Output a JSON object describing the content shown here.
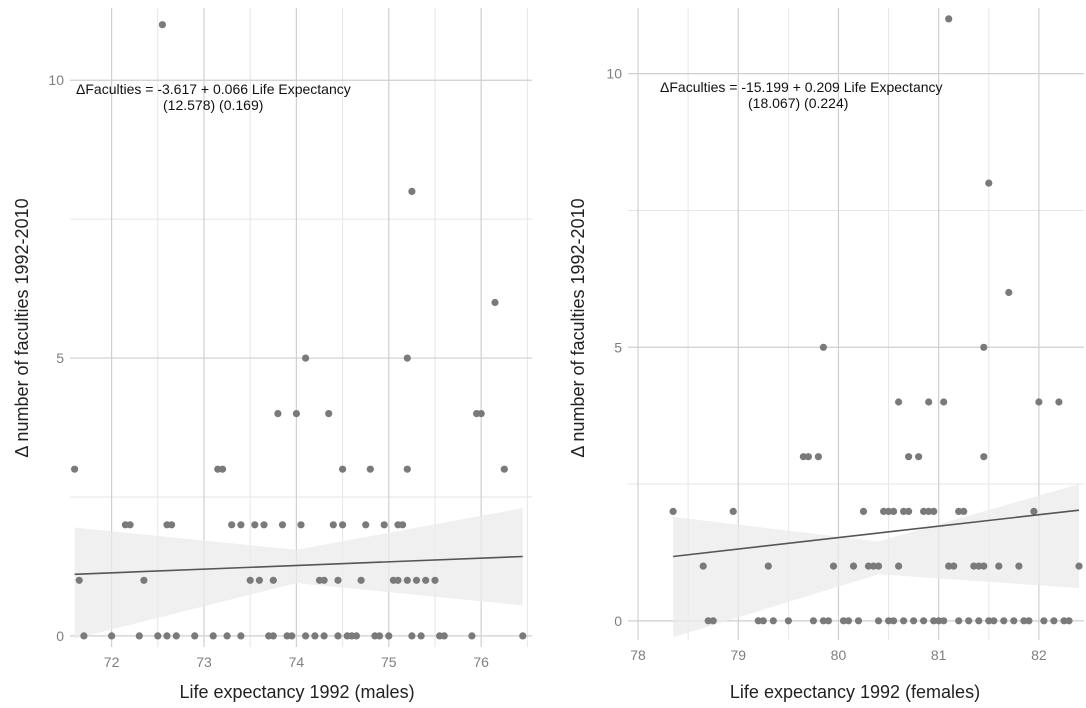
{
  "chart_data": [
    {
      "type": "scatter",
      "xlabel": "Life expectancy 1992 (males)",
      "ylabel": "Δ number of faculties 1992-2010",
      "xlim": [
        71.55,
        76.55
      ],
      "ylim": [
        -0.2,
        11.3
      ],
      "x_ticks": [
        72,
        73,
        74,
        75,
        76
      ],
      "y_ticks": [
        0,
        5,
        10
      ],
      "grid": true,
      "annotation": {
        "line1": "ΔFaculties = -3.617 +   0.066 Life Expectancy",
        "line2": "(12.578)   (0.169)",
        "x": 71.55,
        "y": 9.95
      },
      "fit": {
        "intercept": -3.617,
        "slope": 0.066,
        "x_from": 71.6,
        "x_to": 76.45
      },
      "ci_band": {
        "x": [
          71.6,
          74.0,
          76.45
        ],
        "lower": [
          -0.05,
          0.95,
          0.55
        ],
        "upper": [
          1.95,
          1.55,
          2.3
        ]
      },
      "points": [
        [
          71.6,
          3
        ],
        [
          71.65,
          1
        ],
        [
          71.7,
          0
        ],
        [
          72.0,
          0
        ],
        [
          72.15,
          2
        ],
        [
          72.2,
          2
        ],
        [
          72.3,
          0
        ],
        [
          72.35,
          1
        ],
        [
          72.5,
          0
        ],
        [
          72.55,
          11
        ],
        [
          72.6,
          0
        ],
        [
          72.6,
          2
        ],
        [
          72.65,
          2
        ],
        [
          72.7,
          0
        ],
        [
          72.9,
          0
        ],
        [
          73.1,
          0
        ],
        [
          73.15,
          3
        ],
        [
          73.2,
          3
        ],
        [
          73.25,
          0
        ],
        [
          73.3,
          2
        ],
        [
          73.4,
          2
        ],
        [
          73.4,
          0
        ],
        [
          73.5,
          1
        ],
        [
          73.55,
          2
        ],
        [
          73.6,
          1
        ],
        [
          73.65,
          2
        ],
        [
          73.7,
          0
        ],
        [
          73.75,
          1
        ],
        [
          73.75,
          0
        ],
        [
          73.8,
          4
        ],
        [
          73.85,
          2
        ],
        [
          73.9,
          0
        ],
        [
          73.95,
          0
        ],
        [
          74.0,
          4
        ],
        [
          74.05,
          2
        ],
        [
          74.1,
          0
        ],
        [
          74.1,
          5
        ],
        [
          74.2,
          0
        ],
        [
          74.25,
          1
        ],
        [
          74.3,
          0
        ],
        [
          74.3,
          1
        ],
        [
          74.35,
          4
        ],
        [
          74.4,
          2
        ],
        [
          74.45,
          0
        ],
        [
          74.45,
          1
        ],
        [
          74.5,
          3
        ],
        [
          74.5,
          2
        ],
        [
          74.55,
          0
        ],
        [
          74.6,
          0
        ],
        [
          74.65,
          0
        ],
        [
          74.7,
          1
        ],
        [
          74.75,
          2
        ],
        [
          74.8,
          3
        ],
        [
          74.85,
          0
        ],
        [
          74.9,
          0
        ],
        [
          74.95,
          2
        ],
        [
          75.0,
          0
        ],
        [
          75.05,
          1
        ],
        [
          75.1,
          1
        ],
        [
          75.1,
          2
        ],
        [
          75.15,
          2
        ],
        [
          75.2,
          1
        ],
        [
          75.2,
          3
        ],
        [
          75.2,
          5
        ],
        [
          75.25,
          8
        ],
        [
          75.25,
          0
        ],
        [
          75.3,
          1
        ],
        [
          75.35,
          0
        ],
        [
          75.4,
          1
        ],
        [
          75.5,
          1
        ],
        [
          75.55,
          0
        ],
        [
          75.6,
          0
        ],
        [
          75.9,
          0
        ],
        [
          75.95,
          4
        ],
        [
          76.0,
          4
        ],
        [
          76.15,
          6
        ],
        [
          76.25,
          3
        ],
        [
          76.45,
          0
        ]
      ]
    },
    {
      "type": "scatter",
      "xlabel": "Life expectancy 1992 (females)",
      "ylabel": "Δ number of faculties 1992-2010",
      "xlim": [
        77.9,
        82.45
      ],
      "ylim": [
        -0.35,
        11.2
      ],
      "x_ticks": [
        78,
        79,
        80,
        81,
        82
      ],
      "y_ticks": [
        0,
        5,
        10
      ],
      "grid": true,
      "annotation": {
        "line1": "ΔFaculties = -15.199 +   0.209 Life Expectancy",
        "line2": "(18.067)     (0.224)",
        "x": 78.6,
        "y": 9.95
      },
      "fit": {
        "intercept": -15.199,
        "slope": 0.209,
        "x_from": 78.35,
        "x_to": 82.4
      },
      "ci_band": {
        "x": [
          78.35,
          80.4,
          82.4
        ],
        "lower": [
          -0.3,
          0.85,
          0.6
        ],
        "upper": [
          1.9,
          1.45,
          2.5
        ]
      },
      "points": [
        [
          78.35,
          2
        ],
        [
          78.65,
          1
        ],
        [
          78.7,
          0
        ],
        [
          78.75,
          0
        ],
        [
          78.95,
          2
        ],
        [
          79.2,
          0
        ],
        [
          79.25,
          0
        ],
        [
          79.3,
          1
        ],
        [
          79.35,
          0
        ],
        [
          79.5,
          0
        ],
        [
          79.65,
          3
        ],
        [
          79.7,
          3
        ],
        [
          79.75,
          0
        ],
        [
          79.8,
          3
        ],
        [
          79.85,
          0
        ],
        [
          79.85,
          5
        ],
        [
          79.9,
          0
        ],
        [
          79.95,
          1
        ],
        [
          80.05,
          0
        ],
        [
          80.1,
          0
        ],
        [
          80.15,
          1
        ],
        [
          80.2,
          0
        ],
        [
          80.25,
          2
        ],
        [
          80.3,
          1
        ],
        [
          80.35,
          1
        ],
        [
          80.4,
          0
        ],
        [
          80.4,
          1
        ],
        [
          80.45,
          2
        ],
        [
          80.5,
          0
        ],
        [
          80.5,
          2
        ],
        [
          80.55,
          2
        ],
        [
          80.55,
          0
        ],
        [
          80.6,
          4
        ],
        [
          80.6,
          1
        ],
        [
          80.65,
          0
        ],
        [
          80.65,
          2
        ],
        [
          80.7,
          3
        ],
        [
          80.7,
          2
        ],
        [
          80.75,
          0
        ],
        [
          80.8,
          3
        ],
        [
          80.85,
          0
        ],
        [
          80.85,
          2
        ],
        [
          80.9,
          4
        ],
        [
          80.9,
          2
        ],
        [
          80.95,
          0
        ],
        [
          80.95,
          2
        ],
        [
          81.0,
          0
        ],
        [
          81.05,
          4
        ],
        [
          81.05,
          0
        ],
        [
          81.1,
          1
        ],
        [
          81.1,
          11
        ],
        [
          81.15,
          1
        ],
        [
          81.2,
          0
        ],
        [
          81.2,
          2
        ],
        [
          81.25,
          2
        ],
        [
          81.3,
          0
        ],
        [
          81.35,
          1
        ],
        [
          81.4,
          0
        ],
        [
          81.4,
          1
        ],
        [
          81.45,
          1
        ],
        [
          81.45,
          3
        ],
        [
          81.45,
          5
        ],
        [
          81.5,
          0
        ],
        [
          81.5,
          8
        ],
        [
          81.55,
          0
        ],
        [
          81.6,
          1
        ],
        [
          81.65,
          0
        ],
        [
          81.7,
          6
        ],
        [
          81.75,
          0
        ],
        [
          81.8,
          1
        ],
        [
          81.85,
          0
        ],
        [
          81.9,
          0
        ],
        [
          81.95,
          2
        ],
        [
          82.0,
          4
        ],
        [
          82.05,
          0
        ],
        [
          82.15,
          0
        ],
        [
          82.2,
          4
        ],
        [
          82.25,
          0
        ],
        [
          82.3,
          0
        ],
        [
          82.4,
          1
        ]
      ]
    }
  ]
}
